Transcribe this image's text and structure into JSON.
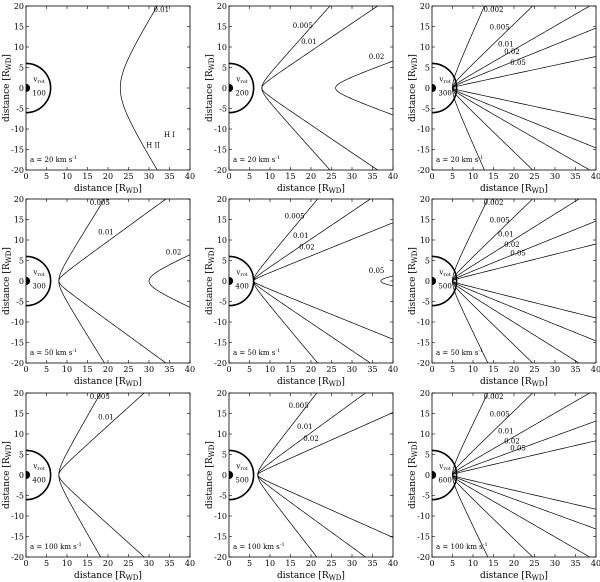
{
  "axis_text": {
    "xlabel": "distance [R",
    "ylabel": "distance [R",
    "subscript": "WD",
    "close": "]"
  },
  "chart_data": [
    {
      "type": "line",
      "a": "a = 20 km s",
      "vrot_label": "v",
      "vrot_sub": "rot",
      "vrot": "100",
      "xlim": [
        0,
        40
      ],
      "ylim": [
        -20,
        20
      ],
      "xticks": [
        0,
        5,
        10,
        15,
        20,
        25,
        30,
        35,
        40
      ],
      "yticks": [
        -20,
        -15,
        -10,
        -5,
        0,
        5,
        10,
        15,
        20
      ],
      "curves": [
        {
          "label": "0.01",
          "vertex": 23,
          "angle": 58
        }
      ],
      "region_labels": [
        "H I",
        "H II"
      ]
    },
    {
      "type": "line",
      "a": "a = 20 km s",
      "vrot_label": "v",
      "vrot_sub": "rot",
      "vrot": "200",
      "xlim": [
        0,
        40
      ],
      "ylim": [
        -20,
        20
      ],
      "xticks": [
        0,
        5,
        10,
        15,
        20,
        25,
        30,
        35,
        40
      ],
      "yticks": [
        -20,
        -15,
        -10,
        -5,
        0,
        5,
        10,
        15,
        20
      ],
      "curves": [
        {
          "label": "0.005",
          "vertex": 8,
          "angle": 48
        },
        {
          "label": "0.01",
          "vertex": 8,
          "angle": 34
        },
        {
          "label": "0.02",
          "vertex": 26,
          "angle": 20
        }
      ]
    },
    {
      "type": "line",
      "a": "a = 20 km s",
      "vrot_label": "v",
      "vrot_sub": "rot",
      "vrot": "300",
      "xlim": [
        0,
        40
      ],
      "ylim": [
        -20,
        20
      ],
      "xticks": [
        0,
        5,
        10,
        15,
        20,
        25,
        30,
        35,
        40
      ],
      "yticks": [
        -20,
        -15,
        -10,
        -5,
        0,
        5,
        10,
        15,
        20
      ],
      "curves": [
        {
          "label": "0.002",
          "vertex": 5,
          "angle": 66
        },
        {
          "label": "0.005",
          "vertex": 5,
          "angle": 44
        },
        {
          "label": "0.01",
          "vertex": 5,
          "angle": 30
        },
        {
          "label": "0.02",
          "vertex": 5,
          "angle": 22
        },
        {
          "label": "0.05",
          "vertex": 5,
          "angle": 12
        }
      ]
    },
    {
      "type": "line",
      "a": "a = 50 km s",
      "vrot_label": "v",
      "vrot_sub": "rot",
      "vrot": "300",
      "xlim": [
        0,
        40
      ],
      "ylim": [
        -20,
        20
      ],
      "xticks": [
        0,
        5,
        10,
        15,
        20,
        25,
        30,
        35,
        40
      ],
      "yticks": [
        -20,
        -15,
        -10,
        -5,
        0,
        5,
        10,
        15,
        20
      ],
      "curves": [
        {
          "label": "0.005",
          "vertex": 8,
          "angle": 58
        },
        {
          "label": "0.01",
          "vertex": 8,
          "angle": 36
        },
        {
          "label": "0.02",
          "vertex": 30,
          "angle": 24
        }
      ]
    },
    {
      "type": "line",
      "a": "a = 50 km s",
      "vrot_label": "v",
      "vrot_sub": "rot",
      "vrot": "400",
      "xlim": [
        0,
        40
      ],
      "ylim": [
        -20,
        20
      ],
      "xticks": [
        0,
        5,
        10,
        15,
        20,
        25,
        30,
        35,
        40
      ],
      "yticks": [
        -20,
        -15,
        -10,
        -5,
        0,
        5,
        10,
        15,
        20
      ],
      "curves": [
        {
          "label": "0.005",
          "vertex": 6,
          "angle": 50
        },
        {
          "label": "0.01",
          "vertex": 6,
          "angle": 34
        },
        {
          "label": "0.02",
          "vertex": 6,
          "angle": 22
        },
        {
          "label": "0.05",
          "vertex": 37,
          "angle": 10
        }
      ]
    },
    {
      "type": "line",
      "a": "a = 50 km s",
      "vrot_label": "v",
      "vrot_sub": "rot",
      "vrot": "500",
      "xlim": [
        0,
        40
      ],
      "ylim": [
        -20,
        20
      ],
      "xticks": [
        0,
        5,
        10,
        15,
        20,
        25,
        30,
        35,
        40
      ],
      "yticks": [
        -20,
        -15,
        -10,
        -5,
        0,
        5,
        10,
        15,
        20
      ],
      "curves": [
        {
          "label": "0.002",
          "vertex": 5,
          "angle": 64
        },
        {
          "label": "0.005",
          "vertex": 5,
          "angle": 44
        },
        {
          "label": "0.01",
          "vertex": 5,
          "angle": 32
        },
        {
          "label": "0.02",
          "vertex": 5,
          "angle": 22
        },
        {
          "label": "0.05",
          "vertex": 5,
          "angle": 14
        }
      ]
    },
    {
      "type": "line",
      "a": "a = 100 km s",
      "vrot_label": "v",
      "vrot_sub": "rot",
      "vrot": "400",
      "xlim": [
        0,
        40
      ],
      "ylim": [
        -20,
        20
      ],
      "xticks": [
        0,
        5,
        10,
        15,
        20,
        25,
        30,
        35,
        40
      ],
      "yticks": [
        -20,
        -15,
        -10,
        -5,
        0,
        5,
        10,
        15,
        20
      ],
      "curves": [
        {
          "label": "0.005",
          "vertex": 8,
          "angle": 60
        },
        {
          "label": "0.01",
          "vertex": 8,
          "angle": 42
        }
      ]
    },
    {
      "type": "line",
      "a": "a = 100 km s",
      "vrot_label": "v",
      "vrot_sub": "rot",
      "vrot": "500",
      "xlim": [
        0,
        40
      ],
      "ylim": [
        -20,
        20
      ],
      "xticks": [
        0,
        5,
        10,
        15,
        20,
        25,
        30,
        35,
        40
      ],
      "yticks": [
        -20,
        -15,
        -10,
        -5,
        0,
        5,
        10,
        15,
        20
      ],
      "curves": [
        {
          "label": "0.005",
          "vertex": 7,
          "angle": 52
        },
        {
          "label": "0.01",
          "vertex": 7,
          "angle": 36
        },
        {
          "label": "0.02",
          "vertex": 7,
          "angle": 24
        }
      ]
    },
    {
      "type": "line",
      "a": "a = 100 km s",
      "vrot_label": "v",
      "vrot_sub": "rot",
      "vrot": "600",
      "xlim": [
        0,
        40
      ],
      "ylim": [
        -20,
        20
      ],
      "xticks": [
        0,
        5,
        10,
        15,
        20,
        25,
        30,
        35,
        40
      ],
      "yticks": [
        -20,
        -15,
        -10,
        -5,
        0,
        5,
        10,
        15,
        20
      ],
      "curves": [
        {
          "label": "0.002",
          "vertex": 5,
          "angle": 64
        },
        {
          "label": "0.005",
          "vertex": 5,
          "angle": 44
        },
        {
          "label": "0.01",
          "vertex": 5,
          "angle": 30
        },
        {
          "label": "0.02",
          "vertex": 5,
          "angle": 20
        },
        {
          "label": "0.05",
          "vertex": 5,
          "angle": 13
        }
      ]
    }
  ]
}
